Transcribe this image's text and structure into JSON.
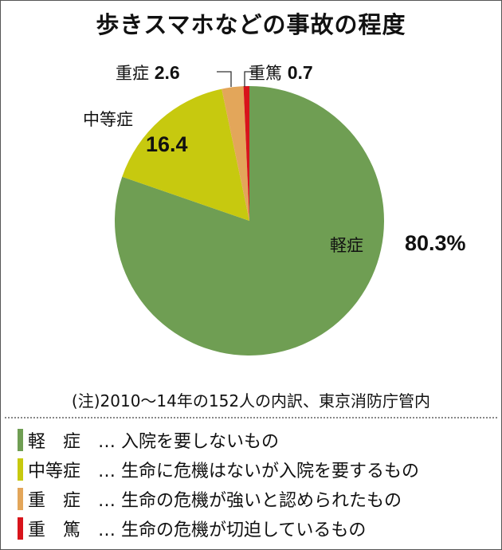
{
  "title": "歩きスマホなどの事故の程度",
  "chart_data": {
    "type": "pie",
    "title": "歩きスマホなどの事故の程度",
    "unit": "%",
    "start_angle": "12 o'clock, clockwise",
    "categories": [
      "軽症",
      "中等症",
      "重症",
      "重篤"
    ],
    "values": [
      80.3,
      16.4,
      2.6,
      0.7
    ],
    "colors": [
      "#6f9e53",
      "#c7c90f",
      "#e3a65a",
      "#d8141b"
    ],
    "data_labels": [
      "80.3%",
      "16.4",
      "2.6",
      "0.7"
    ],
    "note": "(注)2010〜14年の152人の内訳、東京消防庁管内"
  },
  "labels": {
    "mild": {
      "name": "軽症",
      "value": "80.3%"
    },
    "moderate": {
      "name": "中等症",
      "value": "16.4"
    },
    "severe": {
      "name": "重症",
      "value": "2.6"
    },
    "critical": {
      "name": "重篤",
      "value": "0.7"
    }
  },
  "note": "(注)2010〜14年の152人の内訳、東京消防庁管内",
  "legend": [
    {
      "name": "軽　症",
      "desc": "… 入院を要しないもの",
      "color": "#6f9e53"
    },
    {
      "name": "中等症",
      "desc": "… 生命に危機はないが入院を要するもの",
      "color": "#c7c90f"
    },
    {
      "name": "重　症",
      "desc": "… 生命の危機が強いと認められたもの",
      "color": "#e3a65a"
    },
    {
      "name": "重　篤",
      "desc": "… 生命の危機が切迫しているもの",
      "color": "#d8141b"
    }
  ]
}
